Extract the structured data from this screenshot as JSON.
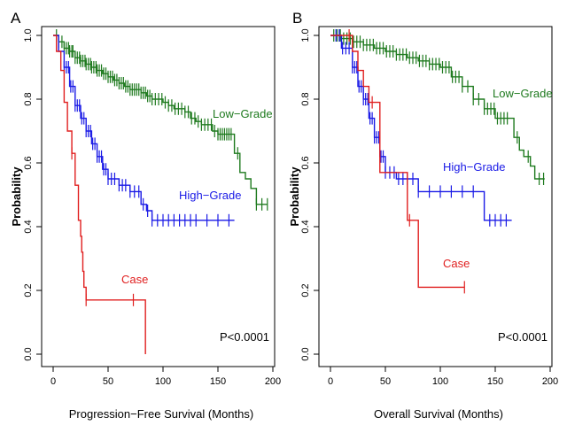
{
  "chart_data": [
    {
      "panel_label": "A",
      "type": "line",
      "subtype": "kaplan-meier",
      "xlabel": "Progression−Free Survival (Months)",
      "ylabel": "Probability",
      "xlim": [
        0,
        200
      ],
      "ylim": [
        0.0,
        1.0
      ],
      "xticks": [
        0,
        50,
        100,
        150,
        200
      ],
      "xtick_labels": [
        "0",
        "50",
        "100",
        "150",
        "200"
      ],
      "yticks": [
        0.0,
        0.2,
        0.4,
        0.6,
        0.8,
        1.0
      ],
      "ytick_labels": [
        "0.0",
        "0.2",
        "0.4",
        "0.6",
        "0.8",
        "1.0"
      ],
      "annotation": "P<0.0001",
      "series": [
        {
          "name": "Low-Grade",
          "label": "Low−Grade",
          "color": "#1e7a1e",
          "steps": [
            [
              0,
              1.0
            ],
            [
              5,
              0.98
            ],
            [
              10,
              0.96
            ],
            [
              15,
              0.95
            ],
            [
              20,
              0.93
            ],
            [
              25,
              0.92
            ],
            [
              30,
              0.91
            ],
            [
              35,
              0.9
            ],
            [
              40,
              0.89
            ],
            [
              45,
              0.88
            ],
            [
              50,
              0.87
            ],
            [
              55,
              0.86
            ],
            [
              60,
              0.85
            ],
            [
              65,
              0.84
            ],
            [
              70,
              0.83
            ],
            [
              75,
              0.83
            ],
            [
              80,
              0.82
            ],
            [
              85,
              0.81
            ],
            [
              90,
              0.8
            ],
            [
              95,
              0.8
            ],
            [
              100,
              0.79
            ],
            [
              105,
              0.78
            ],
            [
              110,
              0.77
            ],
            [
              115,
              0.77
            ],
            [
              120,
              0.76
            ],
            [
              125,
              0.74
            ],
            [
              130,
              0.73
            ],
            [
              135,
              0.72
            ],
            [
              140,
              0.72
            ],
            [
              145,
              0.7
            ],
            [
              150,
              0.69
            ],
            [
              155,
              0.69
            ],
            [
              162,
              0.69
            ],
            [
              165,
              0.63
            ],
            [
              170,
              0.57
            ],
            [
              175,
              0.55
            ],
            [
              180,
              0.52
            ],
            [
              185,
              0.47
            ],
            [
              195,
              0.47
            ]
          ],
          "censor": [
            3,
            5,
            8,
            10,
            12,
            14,
            15,
            17,
            18,
            20,
            22,
            24,
            25,
            27,
            29,
            30,
            32,
            34,
            35,
            37,
            39,
            40,
            42,
            44,
            46,
            48,
            50,
            52,
            54,
            56,
            58,
            60,
            62,
            64,
            66,
            68,
            70,
            72,
            74,
            76,
            78,
            80,
            82,
            84,
            86,
            88,
            90,
            93,
            96,
            99,
            102,
            105,
            108,
            111,
            114,
            117,
            120,
            123,
            126,
            129,
            132,
            135,
            138,
            141,
            144,
            147,
            150,
            152,
            154,
            156,
            158,
            160,
            162,
            168,
            185,
            190,
            195
          ]
        },
        {
          "name": "High-Grade",
          "label": "High−Grade",
          "color": "#1a1ae6",
          "steps": [
            [
              0,
              1.0
            ],
            [
              5,
              0.95
            ],
            [
              10,
              0.9
            ],
            [
              15,
              0.84
            ],
            [
              20,
              0.78
            ],
            [
              25,
              0.74
            ],
            [
              30,
              0.7
            ],
            [
              35,
              0.66
            ],
            [
              40,
              0.62
            ],
            [
              45,
              0.58
            ],
            [
              50,
              0.55
            ],
            [
              60,
              0.53
            ],
            [
              70,
              0.51
            ],
            [
              80,
              0.47
            ],
            [
              85,
              0.45
            ],
            [
              90,
              0.42
            ],
            [
              165,
              0.42
            ]
          ],
          "censor": [
            10,
            12,
            14,
            16,
            18,
            20,
            22,
            24,
            26,
            28,
            30,
            32,
            34,
            36,
            38,
            40,
            42,
            44,
            46,
            48,
            50,
            53,
            56,
            60,
            63,
            66,
            70,
            74,
            78,
            82,
            86,
            90,
            95,
            100,
            105,
            110,
            115,
            120,
            125,
            130,
            140,
            150,
            160
          ]
        },
        {
          "name": "Case",
          "label": "Case",
          "color": "#e01f1f",
          "steps": [
            [
              0,
              1.0
            ],
            [
              3,
              0.95
            ],
            [
              7,
              0.89
            ],
            [
              10,
              0.79
            ],
            [
              13,
              0.7
            ],
            [
              17,
              0.63
            ],
            [
              20,
              0.53
            ],
            [
              23,
              0.42
            ],
            [
              25,
              0.37
            ],
            [
              26,
              0.32
            ],
            [
              27,
              0.26
            ],
            [
              28,
              0.21
            ],
            [
              30,
              0.17
            ],
            [
              84,
              0.17
            ],
            [
              84,
              0.0
            ]
          ],
          "censor": [
            17,
            30,
            73
          ]
        }
      ]
    },
    {
      "panel_label": "B",
      "type": "line",
      "subtype": "kaplan-meier",
      "xlabel": "Overall Survival (Months)",
      "ylabel": "Probability",
      "xlim": [
        0,
        200
      ],
      "ylim": [
        0.0,
        1.0
      ],
      "xticks": [
        0,
        50,
        100,
        150,
        200
      ],
      "xtick_labels": [
        "0",
        "50",
        "100",
        "150",
        "200"
      ],
      "yticks": [
        0.0,
        0.2,
        0.4,
        0.6,
        0.8,
        1.0
      ],
      "ytick_labels": [
        "0.0",
        "0.2",
        "0.4",
        "0.6",
        "0.8",
        "1.0"
      ],
      "annotation": "P<0.0001",
      "series": [
        {
          "name": "Low-Grade",
          "label": "Low−Grade",
          "color": "#1e7a1e",
          "steps": [
            [
              0,
              1.0
            ],
            [
              10,
              0.99
            ],
            [
              20,
              0.98
            ],
            [
              30,
              0.97
            ],
            [
              40,
              0.96
            ],
            [
              50,
              0.95
            ],
            [
              60,
              0.94
            ],
            [
              70,
              0.93
            ],
            [
              80,
              0.92
            ],
            [
              90,
              0.91
            ],
            [
              100,
              0.9
            ],
            [
              110,
              0.87
            ],
            [
              120,
              0.84
            ],
            [
              130,
              0.8
            ],
            [
              140,
              0.77
            ],
            [
              150,
              0.74
            ],
            [
              163,
              0.74
            ],
            [
              167,
              0.68
            ],
            [
              172,
              0.64
            ],
            [
              176,
              0.62
            ],
            [
              182,
              0.59
            ],
            [
              186,
              0.55
            ],
            [
              195,
              0.55
            ]
          ],
          "censor": [
            3,
            6,
            9,
            12,
            15,
            18,
            21,
            24,
            27,
            30,
            33,
            36,
            39,
            42,
            45,
            48,
            51,
            54,
            57,
            60,
            63,
            66,
            69,
            72,
            75,
            78,
            81,
            84,
            87,
            90,
            93,
            96,
            99,
            102,
            105,
            108,
            111,
            114,
            117,
            120,
            125,
            130,
            135,
            140,
            143,
            146,
            149,
            152,
            155,
            158,
            161,
            170,
            180,
            190,
            194
          ]
        },
        {
          "name": "High-Grade",
          "label": "High−Grade",
          "color": "#1a1ae6",
          "steps": [
            [
              0,
              1.0
            ],
            [
              10,
              0.96
            ],
            [
              20,
              0.9
            ],
            [
              25,
              0.84
            ],
            [
              30,
              0.8
            ],
            [
              35,
              0.74
            ],
            [
              40,
              0.68
            ],
            [
              45,
              0.62
            ],
            [
              50,
              0.57
            ],
            [
              60,
              0.55
            ],
            [
              80,
              0.51
            ],
            [
              140,
              0.51
            ],
            [
              140,
              0.42
            ],
            [
              165,
              0.42
            ]
          ],
          "censor": [
            5,
            8,
            11,
            14,
            17,
            20,
            22,
            24,
            26,
            28,
            30,
            32,
            34,
            36,
            38,
            40,
            42,
            44,
            46,
            48,
            50,
            54,
            58,
            62,
            66,
            70,
            75,
            80,
            90,
            100,
            110,
            120,
            130,
            145,
            150,
            155,
            160
          ]
        },
        {
          "name": "Case",
          "label": "Case",
          "color": "#e01f1f",
          "steps": [
            [
              0,
              1.0
            ],
            [
              20,
              1.0
            ],
            [
              20,
              0.95
            ],
            [
              25,
              0.95
            ],
            [
              25,
              0.89
            ],
            [
              30,
              0.89
            ],
            [
              30,
              0.84
            ],
            [
              35,
              0.84
            ],
            [
              35,
              0.79
            ],
            [
              45,
              0.79
            ],
            [
              45,
              0.57
            ],
            [
              70,
              0.57
            ],
            [
              70,
              0.42
            ],
            [
              80,
              0.42
            ],
            [
              80,
              0.21
            ],
            [
              122,
              0.21
            ]
          ],
          "censor": [
            17,
            38,
            72,
            122
          ]
        }
      ]
    }
  ]
}
